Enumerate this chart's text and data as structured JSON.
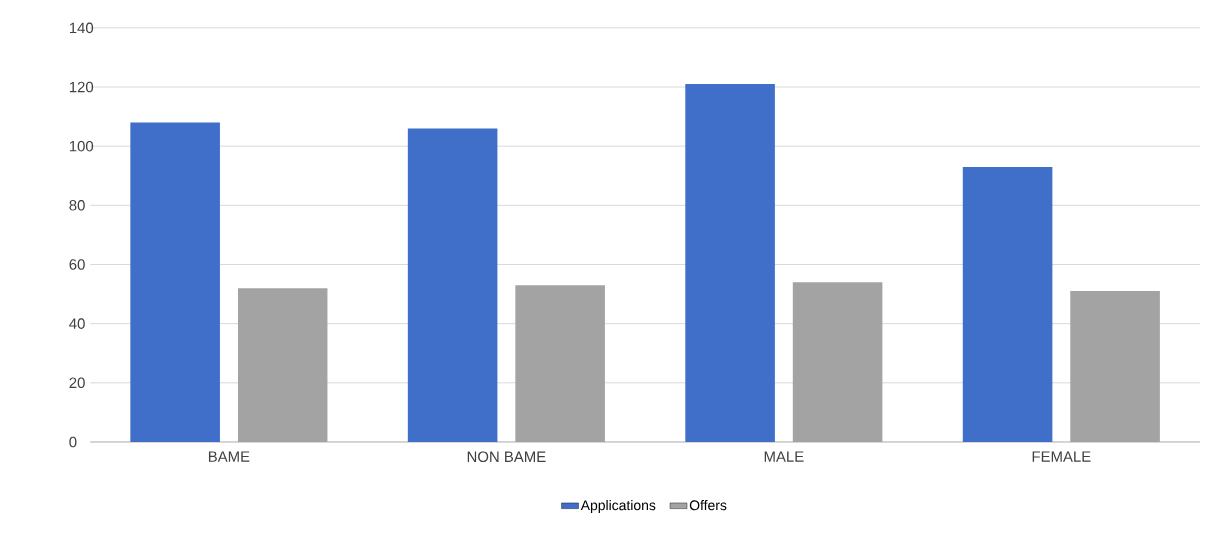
{
  "chart_data": {
    "type": "bar",
    "categories": [
      "BAME",
      "NON BAME",
      "MALE",
      "FEMALE"
    ],
    "series": [
      {
        "name": "Applications",
        "color": "#3f6fc9",
        "values": [
          108,
          106,
          121,
          93
        ]
      },
      {
        "name": "Offers",
        "color": "#a3a3a3",
        "values": [
          52,
          53,
          54,
          51
        ]
      }
    ],
    "ylim": [
      0,
      140
    ],
    "yticks": [
      0,
      20,
      40,
      60,
      80,
      100,
      120,
      140
    ],
    "grid": "y",
    "legend": "bottom"
  }
}
